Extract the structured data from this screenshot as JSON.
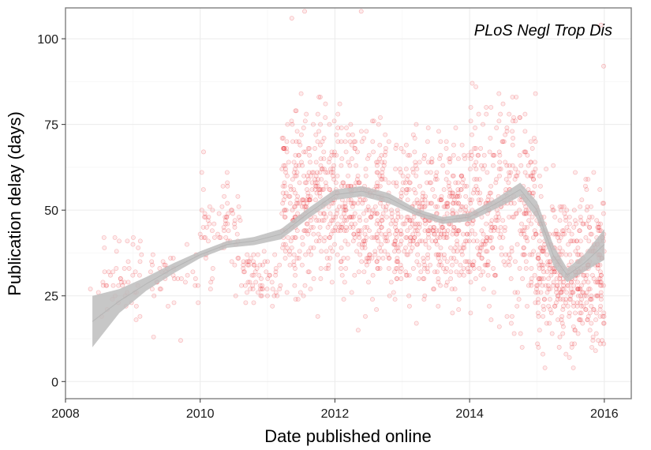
{
  "chart_data": {
    "type": "scatter",
    "title": "",
    "annotation": "PLoS Negl Trop Dis",
    "xlabel": "Date published online",
    "ylabel": "Publication delay (days)",
    "xlim": [
      2008.0,
      2016.4
    ],
    "ylim": [
      -5,
      109
    ],
    "x_ticks": [
      2008,
      2010,
      2012,
      2014,
      2016
    ],
    "y_ticks": [
      0,
      25,
      50,
      75,
      100
    ],
    "grid": true,
    "legend": "none",
    "colors": {
      "points": "#e8262a",
      "smooth_band": "#bdbdbd",
      "panel_border": "#7f7f7f",
      "grid": "#ebebeb"
    },
    "smooth": {
      "method": "loess",
      "x": [
        2008.4,
        2008.8,
        2009.2,
        2009.6,
        2010.0,
        2010.4,
        2010.8,
        2011.2,
        2011.6,
        2012.0,
        2012.4,
        2012.8,
        2013.2,
        2013.6,
        2014.0,
        2014.4,
        2014.75,
        2015.0,
        2015.25,
        2015.45,
        2015.7,
        2016.0
      ],
      "fit": [
        17.5,
        23.5,
        28.5,
        33.0,
        37.0,
        40.0,
        41.0,
        43.0,
        49.0,
        54.5,
        55.5,
        53.5,
        49.5,
        47.0,
        48.0,
        52.0,
        56.0,
        50.0,
        36.5,
        31.0,
        34.5,
        40.0
      ],
      "lower": [
        10.0,
        20.0,
        26.5,
        31.5,
        36.0,
        39.0,
        39.8,
        41.5,
        47.5,
        53.0,
        54.0,
        52.0,
        48.5,
        46.0,
        46.8,
        50.5,
        54.0,
        47.5,
        33.5,
        29.0,
        32.0,
        35.5
      ],
      "upper": [
        25.0,
        27.0,
        30.5,
        34.5,
        38.0,
        41.0,
        42.2,
        44.5,
        50.5,
        56.0,
        57.0,
        55.0,
        50.5,
        48.0,
        49.2,
        53.5,
        58.0,
        52.5,
        39.5,
        33.0,
        37.0,
        44.5
      ]
    },
    "series": [
      {
        "description": "Individual articles (semi-transparent points)",
        "density_profile": [
          {
            "x_range": [
              2008.4,
              2010.0
            ],
            "per_year": 55,
            "y_center": 30,
            "y_spread": 6
          },
          {
            "x_range": [
              2010.0,
              2010.6
            ],
            "per_year": 120,
            "y_center": 46,
            "y_spread": 8
          },
          {
            "x_range": [
              2010.6,
              2011.2
            ],
            "per_year": 110,
            "y_center": 30,
            "y_spread": 4
          },
          {
            "x_range": [
              2011.2,
              2012.8
            ],
            "per_year": 360,
            "y_center": 52,
            "y_spread": 13
          },
          {
            "x_range": [
              2012.8,
              2014.0
            ],
            "per_year": 360,
            "y_center": 46,
            "y_spread": 11
          },
          {
            "x_range": [
              2014.0,
              2015.0
            ],
            "per_year": 340,
            "y_center": 52,
            "y_spread": 15
          },
          {
            "x_range": [
              2015.0,
              2016.0
            ],
            "per_year": 420,
            "y_center": 33,
            "y_spread": 12
          }
        ],
        "notable_points": [
          {
            "x": 2008.37,
            "y": 27
          },
          {
            "x": 2009.71,
            "y": 12
          },
          {
            "x": 2010.05,
            "y": 67
          },
          {
            "x": 2011.36,
            "y": 106
          },
          {
            "x": 2011.55,
            "y": 108
          },
          {
            "x": 2012.39,
            "y": 108
          },
          {
            "x": 2015.33,
            "y": 10
          },
          {
            "x": 2015.95,
            "y": 104
          },
          {
            "x": 2015.99,
            "y": 92
          }
        ]
      }
    ]
  }
}
